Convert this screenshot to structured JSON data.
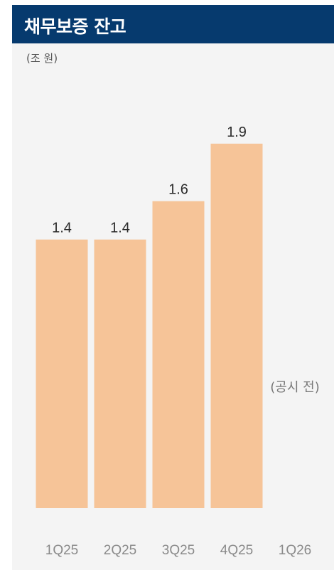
{
  "header": {
    "title": "채무보증 잔고"
  },
  "unit": "(조 원)",
  "chart_data": {
    "type": "bar",
    "title": "채무보증 잔고",
    "ylabel": "(조 원)",
    "categories": [
      "1Q25",
      "2Q25",
      "3Q25",
      "4Q25",
      "1Q26"
    ],
    "values": [
      1.4,
      1.4,
      1.6,
      1.9,
      null
    ],
    "data_labels": [
      "1.4",
      "1.4",
      "1.6",
      "1.9",
      ""
    ],
    "annotations": [
      {
        "category": "1Q26",
        "text": "(공시 전)"
      }
    ],
    "ylim": [
      0,
      2.2
    ],
    "grid": false,
    "colors": {
      "bar": "#f6c498",
      "header": "#063a6e",
      "background": "#f4f4f4"
    }
  }
}
